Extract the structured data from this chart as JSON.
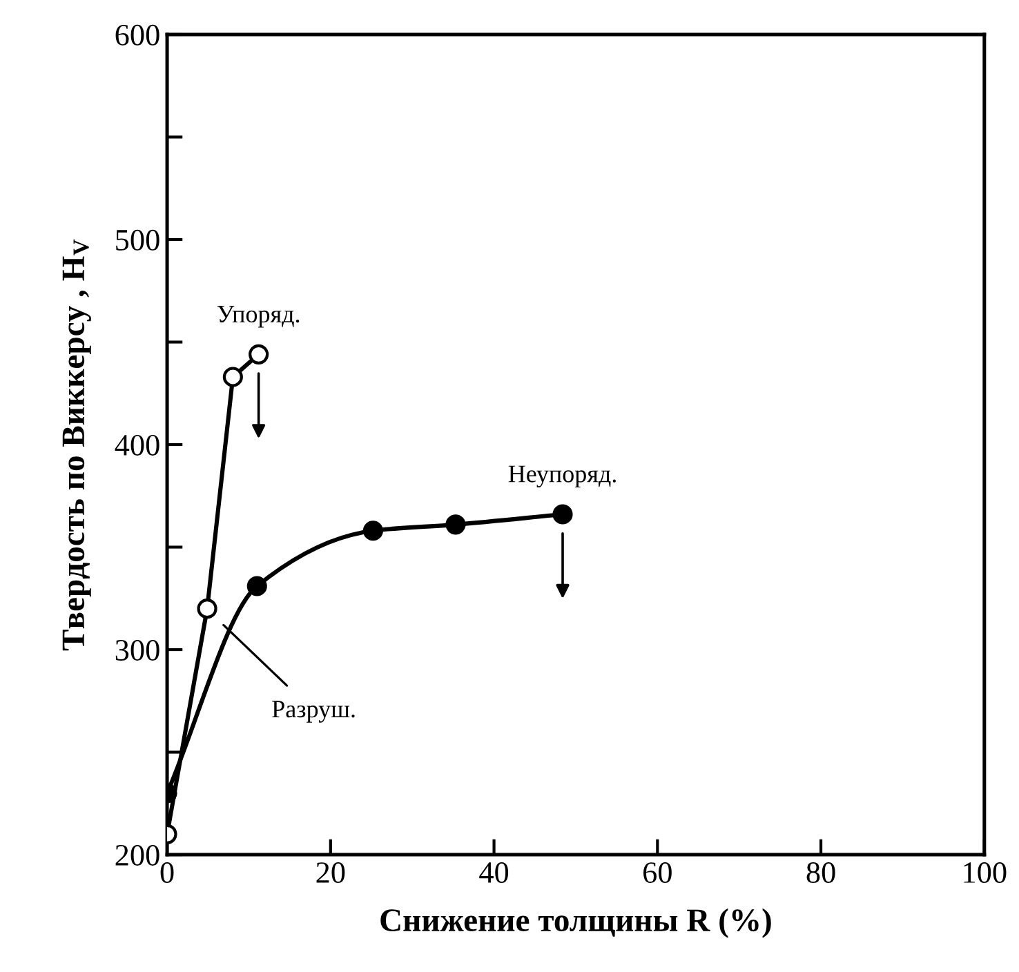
{
  "chart_data": {
    "type": "line",
    "xlabel": "Снижение толщины R (%)",
    "ylabel": "Твердость по Виккерсу , H$_{V}$",
    "xlim": [
      0,
      100
    ],
    "xticks": [
      0,
      20,
      40,
      60,
      80,
      100
    ],
    "ylim": [
      200,
      600
    ],
    "yticks": [
      200,
      {
        "value": 250,
        "label": null
      },
      300,
      {
        "value": 350,
        "label": null
      },
      400,
      {
        "value": 450,
        "label": null
      },
      500,
      {
        "value": 550,
        "label": null
      },
      600
    ],
    "grid": false,
    "legend": false,
    "series": [
      {
        "color": "#000000",
        "marker": "circle",
        "x": [
          0,
          4.9,
          8.05,
          11.2
        ],
        "values": [
          210,
          320,
          433,
          444
        ]
      },
      {
        "color": "#000000",
        "marker": "circle",
        "x": [
          0,
          11,
          25.2,
          35.3,
          48.4
        ],
        "values": [
          230,
          331,
          358,
          361,
          366
        ]
      }
    ],
    "annotations": [
      {
        "text": "Упоряд.",
        "x": 11.2,
        "y": 444
      },
      {
        "text": "Неупоряд.",
        "x": 48.4,
        "y": 366
      },
      {
        "text": "Разруш.",
        "x": 6.9,
        "y": 312
      }
    ]
  }
}
